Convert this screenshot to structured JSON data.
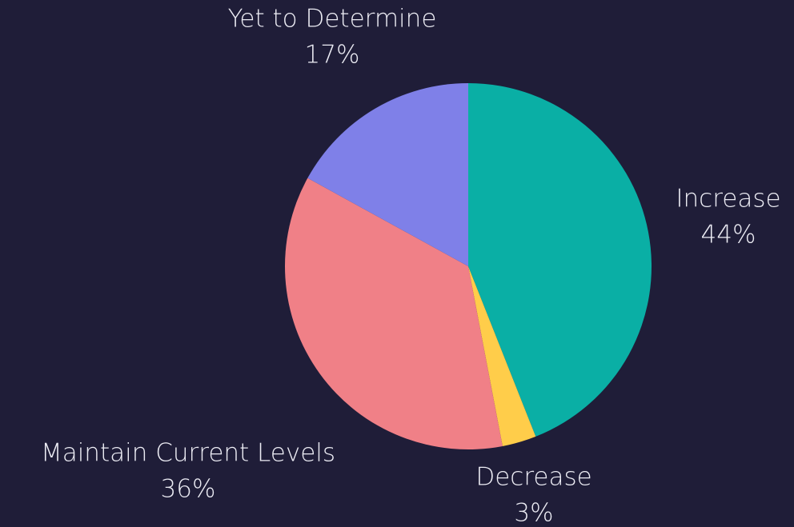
{
  "chart_data": {
    "type": "pie",
    "categories": [
      "Increase",
      "Decrease",
      "Maintain Current Levels",
      "Yet to Determine"
    ],
    "values": [
      44,
      3,
      36,
      17
    ],
    "value_labels": [
      "44%",
      "3%",
      "36%",
      "17%"
    ],
    "colors": [
      "#0aafa5",
      "#ffcd4a",
      "#f08087",
      "#7f80e8"
    ]
  }
}
